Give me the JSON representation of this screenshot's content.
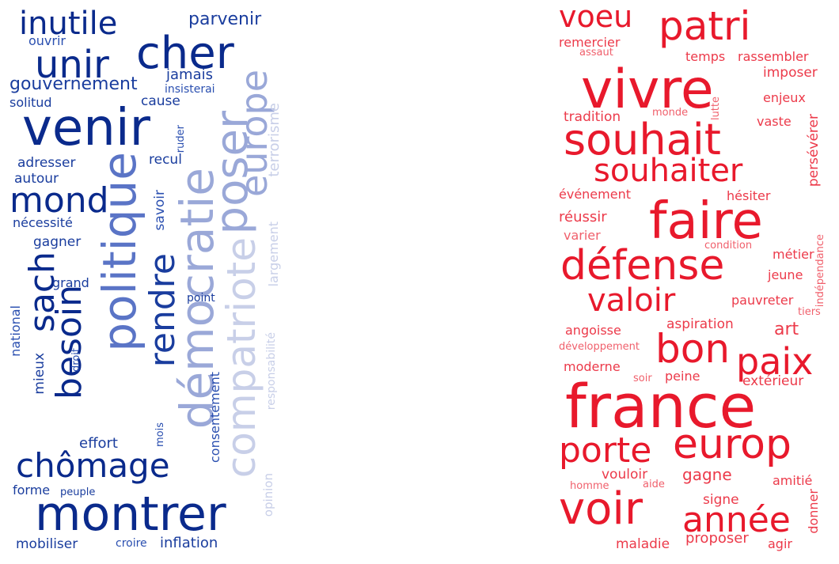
{
  "left_cloud": {
    "name": "",
    "color_scale": [
      "#0a2a8c",
      "#1a3d9e",
      "#2a4fb0",
      "#5a74c6",
      "#9aa8d8",
      "#c8cfe8"
    ],
    "words": [
      "inutile",
      "parvenir",
      "ouvrir",
      "unir",
      "cher",
      "gouvernement",
      "jamais",
      "insisterai",
      "solitud",
      "cause",
      "venir",
      "ruder",
      "recul",
      "adresser",
      "autour",
      "mond",
      "savoir",
      "nécessité",
      "gagner",
      "sach",
      "besoin",
      "politique",
      "rendre",
      "démocratie",
      "poser",
      "europe",
      "terrorisme",
      "compatriote",
      "largement",
      "grand",
      "point",
      "national",
      "mieux",
      "droit",
      "effort",
      "mois",
      "consentement",
      "responsabilité",
      "opinion",
      "chômage",
      "forme",
      "peuple",
      "montrer",
      "mobiliser",
      "croire",
      "inflation"
    ]
  },
  "right_cloud": {
    "name": "",
    "color_scale": [
      "#e8192c",
      "#ec3a4a",
      "#f0606c"
    ],
    "words": [
      "voeu",
      "patri",
      "remercier",
      "assaut",
      "temps",
      "rassembler",
      "vivre",
      "imposer",
      "enjeux",
      "lutte",
      "tradition",
      "monde",
      "vaste",
      "souhait",
      "persévérer",
      "souhaiter",
      "événement",
      "hésiter",
      "réussir",
      "faire",
      "varier",
      "condition",
      "métier",
      "défense",
      "indépendance",
      "jeune",
      "valoir",
      "pauvreter",
      "tiers",
      "angoisse",
      "aspiration",
      "art",
      "développement",
      "bon",
      "paix",
      "moderne",
      "soir",
      "peine",
      "extérieur",
      "france",
      "porte",
      "europ",
      "homme",
      "aide",
      "vouloir",
      "gagne",
      "amitié",
      "signe",
      "voir",
      "année",
      "donner",
      "maladie",
      "proposer",
      "agir"
    ]
  }
}
